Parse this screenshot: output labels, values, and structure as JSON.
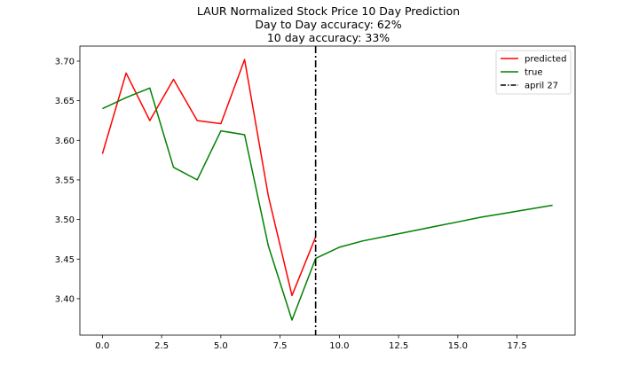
{
  "chart_data": {
    "type": "line",
    "title": "LAUR Normalized Stock Price 10 Day Prediction",
    "subtitle_lines": [
      "Day to Day accuracy: 62%",
      "10 day accuracy: 33%"
    ],
    "xlabel": "",
    "ylabel": "",
    "xlim": [
      -0.95,
      19.95
    ],
    "ylim": [
      3.354,
      3.719
    ],
    "x_ticks": [
      0.0,
      2.5,
      5.0,
      7.5,
      10.0,
      12.5,
      15.0,
      17.5
    ],
    "x_tick_labels": [
      "0.0",
      "2.5",
      "5.0",
      "7.5",
      "10.0",
      "12.5",
      "15.0",
      "17.5"
    ],
    "y_ticks": [
      3.4,
      3.45,
      3.5,
      3.55,
      3.6,
      3.65,
      3.7
    ],
    "y_tick_labels": [
      "3.40",
      "3.45",
      "3.50",
      "3.55",
      "3.60",
      "3.65",
      "3.70"
    ],
    "grid": false,
    "legend_position": "top-right",
    "series": [
      {
        "name": "predicted",
        "color": "#ff0000",
        "x": [
          0,
          1,
          2,
          3,
          4,
          5,
          6,
          7,
          8,
          9
        ],
        "y": [
          3.583,
          3.685,
          3.625,
          3.677,
          3.625,
          3.621,
          3.702,
          3.53,
          3.404,
          3.478
        ]
      },
      {
        "name": "true",
        "color": "#008000",
        "x": [
          0,
          1,
          2,
          3,
          4,
          5,
          6,
          7,
          8,
          9,
          10,
          11,
          12,
          13,
          14,
          15,
          16,
          17,
          18,
          19
        ],
        "y": [
          3.64,
          3.654,
          3.666,
          3.566,
          3.55,
          3.612,
          3.607,
          3.467,
          3.373,
          3.451,
          3.465,
          3.473,
          3.479,
          3.485,
          3.491,
          3.497,
          3.503,
          3.508,
          3.513,
          3.518
        ]
      }
    ],
    "vline": {
      "name": "april 27",
      "x": 9,
      "color": "#000000",
      "style": "dash-dot"
    }
  }
}
